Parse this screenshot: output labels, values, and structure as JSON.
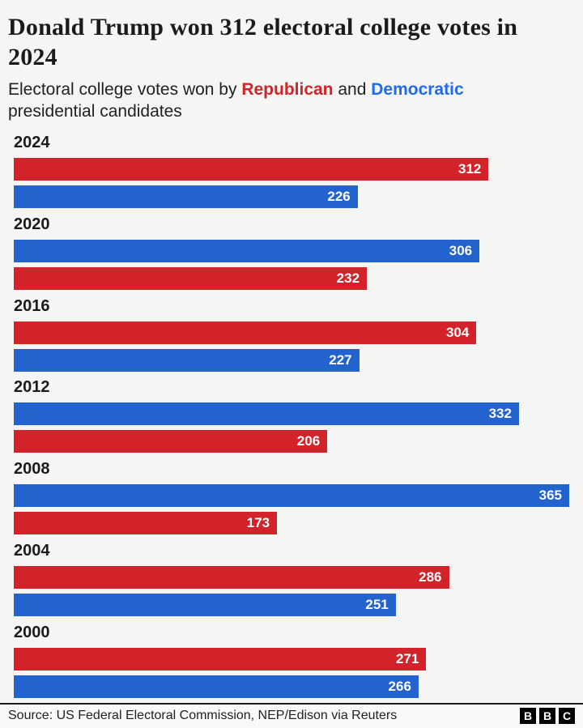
{
  "header": {
    "title": "Donald Trump won 312 electoral college votes in 2024",
    "subtitle": {
      "prefix": "Electoral college votes won by ",
      "republican_label": "Republican",
      "and": " and ",
      "democratic_label": "Democratic",
      "suffix": " presidential candidates"
    }
  },
  "colors": {
    "republican_bar": "#d2232a",
    "democratic_bar": "#2263cd",
    "republican_text": "#d2232a",
    "democratic_text": "#1f6bf0",
    "background": "#f5f5f3",
    "text": "#222222"
  },
  "chart_data": {
    "type": "bar",
    "orientation": "horizontal",
    "title": "Donald Trump won 312 electoral college votes in 2024",
    "subtitle": "Electoral college votes won by Republican and Democratic presidential candidates",
    "unit": "electoral college votes",
    "value_axis_max": 365,
    "grid": false,
    "legend": "inline-in-subtitle",
    "value_labels": "inside-bar-end",
    "groups": [
      {
        "year": "2024",
        "bars": [
          {
            "party": "republican",
            "value": 312
          },
          {
            "party": "democratic",
            "value": 226
          }
        ]
      },
      {
        "year": "2020",
        "bars": [
          {
            "party": "democratic",
            "value": 306
          },
          {
            "party": "republican",
            "value": 232
          }
        ]
      },
      {
        "year": "2016",
        "bars": [
          {
            "party": "republican",
            "value": 304
          },
          {
            "party": "democratic",
            "value": 227
          }
        ]
      },
      {
        "year": "2012",
        "bars": [
          {
            "party": "democratic",
            "value": 332
          },
          {
            "party": "republican",
            "value": 206
          }
        ]
      },
      {
        "year": "2008",
        "bars": [
          {
            "party": "democratic",
            "value": 365
          },
          {
            "party": "republican",
            "value": 173
          }
        ]
      },
      {
        "year": "2004",
        "bars": [
          {
            "party": "republican",
            "value": 286
          },
          {
            "party": "democratic",
            "value": 251
          }
        ]
      },
      {
        "year": "2000",
        "bars": [
          {
            "party": "republican",
            "value": 271
          },
          {
            "party": "democratic",
            "value": 266
          }
        ]
      }
    ]
  },
  "footer": {
    "source": "Source: US Federal Electoral Commission, NEP/Edison via Reuters",
    "logo_letters": [
      "B",
      "B",
      "C"
    ]
  }
}
